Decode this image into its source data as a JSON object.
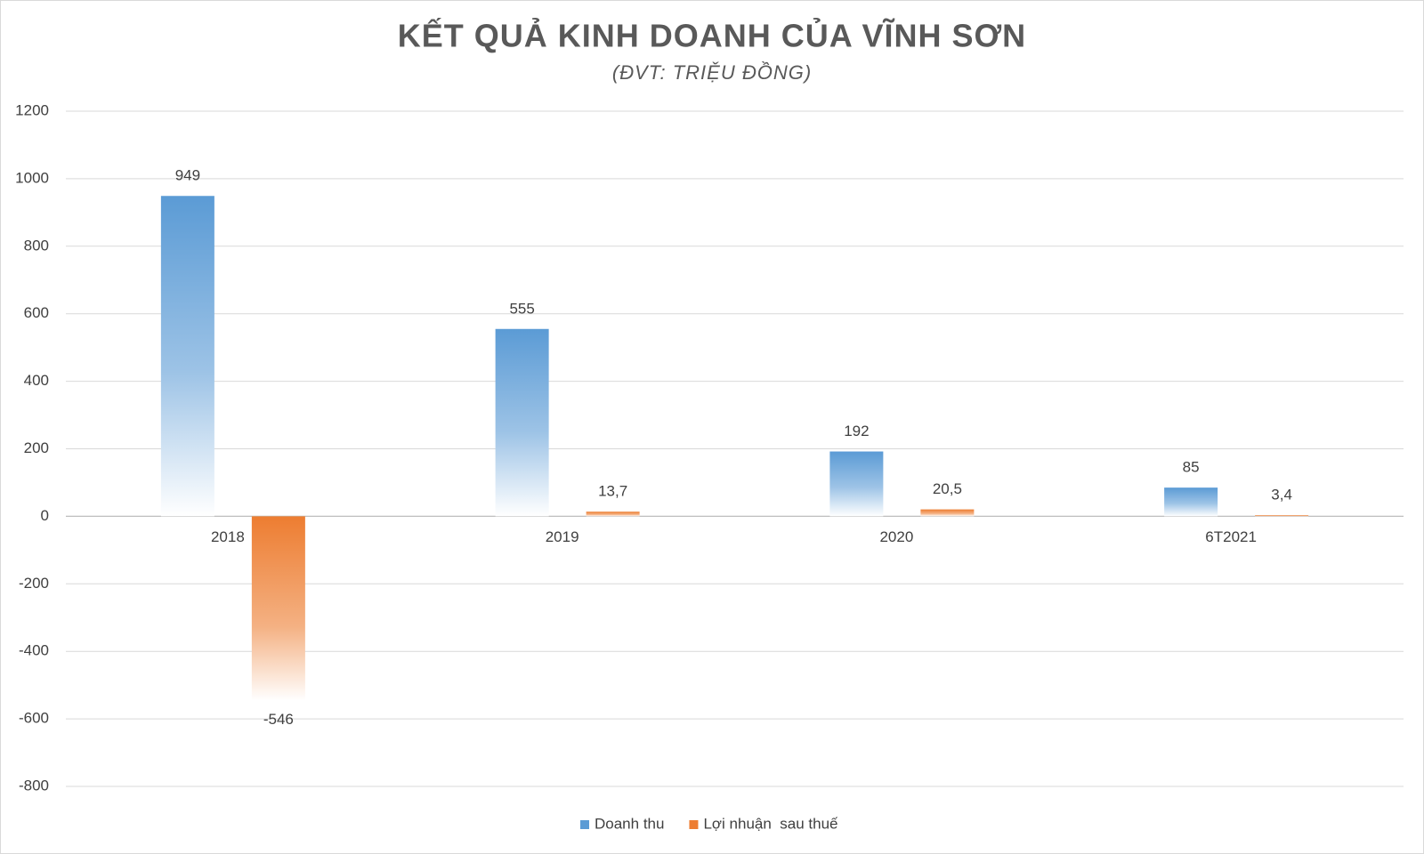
{
  "chart_data": {
    "type": "bar",
    "title": "KẾT QUẢ KINH DOANH CỦA VĨNH SƠN",
    "subtitle": "(ĐVT: TRIỆU ĐỒNG)",
    "categories": [
      "2018",
      "2019",
      "2020",
      "6T2021"
    ],
    "series": [
      {
        "name": "Doanh thu",
        "color": "#5b9bd5",
        "values": [
          949,
          555,
          192,
          85
        ]
      },
      {
        "name": "Lợi nhuận  sau thuế",
        "color": "#ed7d31",
        "values": [
          -546,
          13.7,
          20.5,
          3.4
        ],
        "value_labels": [
          "-546",
          "13,7",
          "20,5",
          "3,4"
        ]
      }
    ],
    "ylim": [
      -800,
      1200
    ],
    "yticks": [
      -800,
      -600,
      -400,
      -200,
      0,
      200,
      400,
      600,
      800,
      1000,
      1200
    ],
    "grid": true,
    "legend": "bottom"
  }
}
